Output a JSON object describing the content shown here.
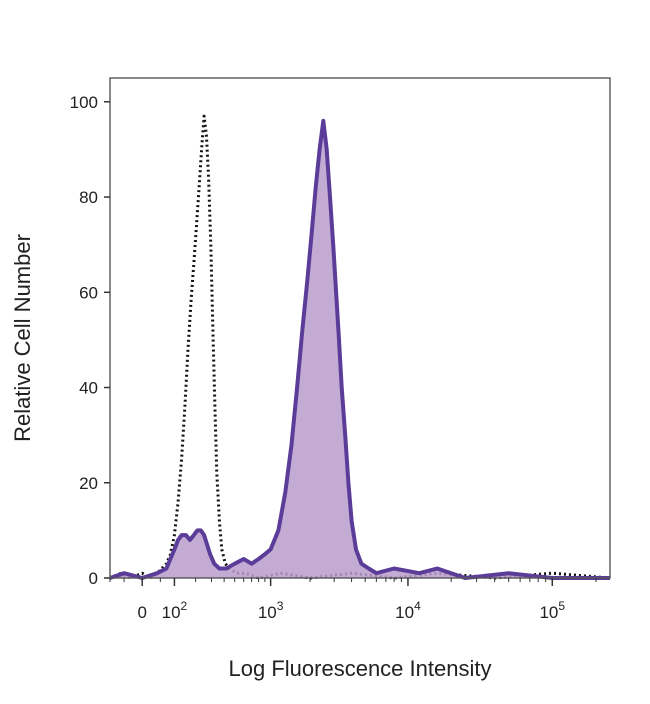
{
  "chart_data": {
    "type": "area",
    "xlabel": "Log Fluorescence Intensity",
    "ylabel": "Relative Cell Number",
    "x_scale": "biexponential",
    "xlim": [
      -100,
      250000
    ],
    "ylim": [
      0,
      105
    ],
    "y_ticks": [
      0,
      20,
      40,
      60,
      80,
      100
    ],
    "x_ticks": [
      {
        "value": 0,
        "base": "0",
        "exp": ""
      },
      {
        "value": 100,
        "base": "10",
        "exp": "2"
      },
      {
        "value": 1000,
        "base": "10",
        "exp": "3"
      },
      {
        "value": 10000,
        "base": "10",
        "exp": "4"
      },
      {
        "value": 100000,
        "base": "10",
        "exp": "5"
      }
    ],
    "grid": false,
    "legend": "none",
    "series": [
      {
        "style": "dotted-outline",
        "color": "#111111",
        "points": [
          [
            -100,
            0
          ],
          [
            -60,
            1
          ],
          [
            -30,
            0
          ],
          [
            0,
            1
          ],
          [
            20,
            0
          ],
          [
            40,
            1
          ],
          [
            55,
            2
          ],
          [
            70,
            3
          ],
          [
            85,
            5
          ],
          [
            100,
            9
          ],
          [
            115,
            16
          ],
          [
            130,
            25
          ],
          [
            145,
            36
          ],
          [
            160,
            48
          ],
          [
            175,
            58
          ],
          [
            190,
            66
          ],
          [
            205,
            74
          ],
          [
            220,
            82
          ],
          [
            235,
            90
          ],
          [
            250,
            97
          ],
          [
            265,
            93
          ],
          [
            280,
            84
          ],
          [
            295,
            70
          ],
          [
            310,
            52
          ],
          [
            325,
            36
          ],
          [
            340,
            22
          ],
          [
            360,
            12
          ],
          [
            380,
            6
          ],
          [
            410,
            3
          ],
          [
            450,
            2
          ],
          [
            520,
            1
          ],
          [
            620,
            1
          ],
          [
            800,
            0
          ],
          [
            1200,
            1
          ],
          [
            2000,
            0
          ],
          [
            4000,
            1
          ],
          [
            8000,
            0
          ],
          [
            16000,
            1
          ],
          [
            40000,
            0
          ],
          [
            100000,
            1
          ],
          [
            250000,
            0
          ]
        ]
      },
      {
        "style": "filled",
        "color": "#5b3d99",
        "fill": "#b89ccb",
        "points": [
          [
            -100,
            0
          ],
          [
            -50,
            1
          ],
          [
            0,
            0
          ],
          [
            40,
            1
          ],
          [
            70,
            2
          ],
          [
            100,
            6
          ],
          [
            115,
            8
          ],
          [
            130,
            9
          ],
          [
            150,
            9
          ],
          [
            170,
            8
          ],
          [
            190,
            9
          ],
          [
            210,
            10
          ],
          [
            230,
            10
          ],
          [
            250,
            9
          ],
          [
            270,
            7
          ],
          [
            290,
            5
          ],
          [
            320,
            3
          ],
          [
            360,
            2
          ],
          [
            420,
            2
          ],
          [
            500,
            3
          ],
          [
            600,
            4
          ],
          [
            700,
            3
          ],
          [
            800,
            4
          ],
          [
            900,
            5
          ],
          [
            1000,
            6
          ],
          [
            1150,
            10
          ],
          [
            1300,
            18
          ],
          [
            1450,
            28
          ],
          [
            1600,
            40
          ],
          [
            1750,
            52
          ],
          [
            1900,
            62
          ],
          [
            2050,
            72
          ],
          [
            2200,
            82
          ],
          [
            2350,
            90
          ],
          [
            2500,
            96
          ],
          [
            2650,
            90
          ],
          [
            2800,
            80
          ],
          [
            2950,
            70
          ],
          [
            3100,
            60
          ],
          [
            3250,
            50
          ],
          [
            3400,
            40
          ],
          [
            3600,
            30
          ],
          [
            3800,
            20
          ],
          [
            4000,
            12
          ],
          [
            4300,
            6
          ],
          [
            4700,
            3
          ],
          [
            5300,
            2
          ],
          [
            6000,
            1
          ],
          [
            8000,
            2
          ],
          [
            12000,
            1
          ],
          [
            16000,
            2
          ],
          [
            25000,
            0
          ],
          [
            50000,
            1
          ],
          [
            100000,
            0
          ],
          [
            250000,
            0
          ]
        ]
      }
    ]
  }
}
